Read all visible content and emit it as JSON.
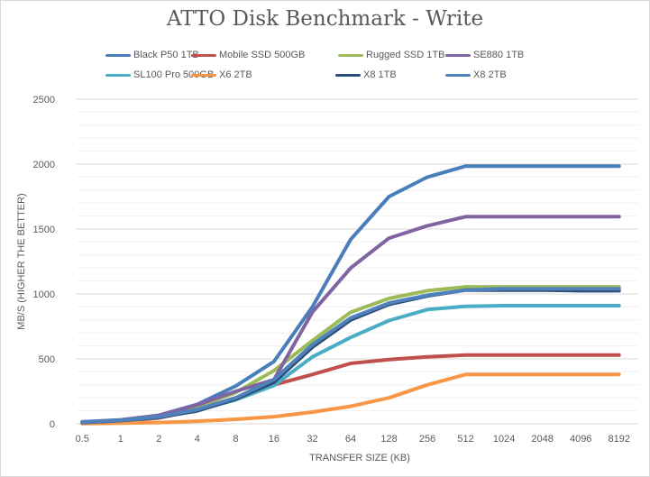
{
  "chart_data": {
    "type": "line",
    "title": "ATTO Disk Benchmark - Write",
    "xlabel": "TRANSFER SIZE (KB)",
    "ylabel": "MB/S (HIGHER THE BETTER)",
    "ylim": [
      0,
      2500
    ],
    "yticks": [
      "0",
      "500",
      "1000",
      "1500",
      "2000",
      "2500"
    ],
    "grid": true,
    "legend_position": "top",
    "categories": [
      "0.5",
      "1",
      "2",
      "4",
      "8",
      "16",
      "32",
      "64",
      "128",
      "256",
      "512",
      "1024",
      "2048",
      "4096",
      "8192"
    ],
    "series": [
      {
        "name": "Black P50 1TB",
        "color": "#4a7ebb",
        "values": [
          15,
          30,
          65,
          150,
          290,
          480,
          900,
          1420,
          1750,
          1900,
          1985,
          1985,
          1985,
          1985,
          1985
        ]
      },
      {
        "name": "Mobile SSD 500GB",
        "color": "#c0504d",
        "values": [
          5,
          20,
          45,
          110,
          200,
          300,
          380,
          465,
          495,
          515,
          530,
          530,
          530,
          530,
          530
        ]
      },
      {
        "name": "Rugged SSD 1TB",
        "color": "#9bbb59",
        "values": [
          10,
          25,
          60,
          130,
          240,
          410,
          640,
          860,
          965,
          1025,
          1055,
          1055,
          1055,
          1055,
          1055
        ]
      },
      {
        "name": "SE880 1TB",
        "color": "#8064a2",
        "values": [
          12,
          30,
          65,
          145,
          250,
          340,
          860,
          1200,
          1430,
          1525,
          1595,
          1595,
          1595,
          1595,
          1595
        ]
      },
      {
        "name": "SL100 Pro 500GB",
        "color": "#4bacc6",
        "values": [
          8,
          22,
          50,
          105,
          185,
          295,
          515,
          665,
          795,
          880,
          905,
          910,
          910,
          910,
          910
        ]
      },
      {
        "name": "X6 2TB",
        "color": "#f79646",
        "values": [
          2,
          5,
          10,
          20,
          35,
          55,
          90,
          135,
          200,
          300,
          380,
          380,
          380,
          380,
          380
        ]
      },
      {
        "name": "X8 1TB",
        "color": "#2c4d75",
        "values": [
          10,
          25,
          50,
          100,
          190,
          320,
          590,
          800,
          920,
          985,
          1030,
          1030,
          1030,
          1025,
          1025
        ]
      },
      {
        "name": "X8 2TB",
        "color": "#4f81bd",
        "values": [
          12,
          28,
          55,
          110,
          200,
          340,
          610,
          815,
          930,
          990,
          1030,
          1040,
          1040,
          1040,
          1040
        ]
      }
    ]
  }
}
